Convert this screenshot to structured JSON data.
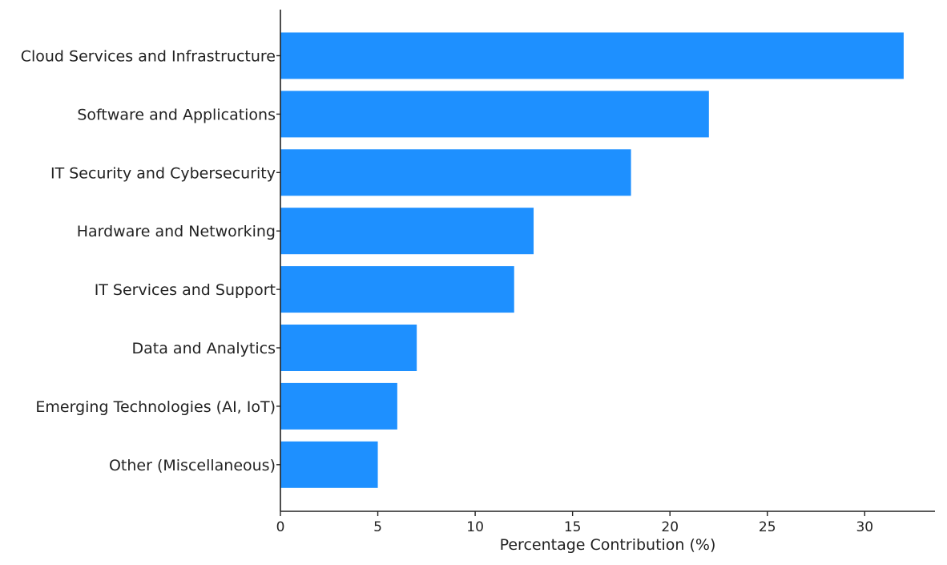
{
  "chart_data": {
    "type": "bar",
    "orientation": "horizontal",
    "title": "",
    "xlabel": "Percentage Contribution (%)",
    "ylabel": "",
    "xlim": [
      0,
      33.6
    ],
    "xticks": [
      0,
      5,
      10,
      15,
      20,
      25,
      30
    ],
    "grid": false,
    "bar_color": "#1e90ff",
    "categories": [
      "Cloud Services and Infrastructure",
      "Software and Applications",
      "IT Security and Cybersecurity",
      "Hardware and Networking",
      "IT Services and Support",
      "Data and Analytics",
      "Emerging Technologies (AI, IoT)",
      "Other (Miscellaneous)"
    ],
    "values": [
      32,
      22,
      18,
      13,
      12,
      7,
      6,
      5
    ]
  }
}
